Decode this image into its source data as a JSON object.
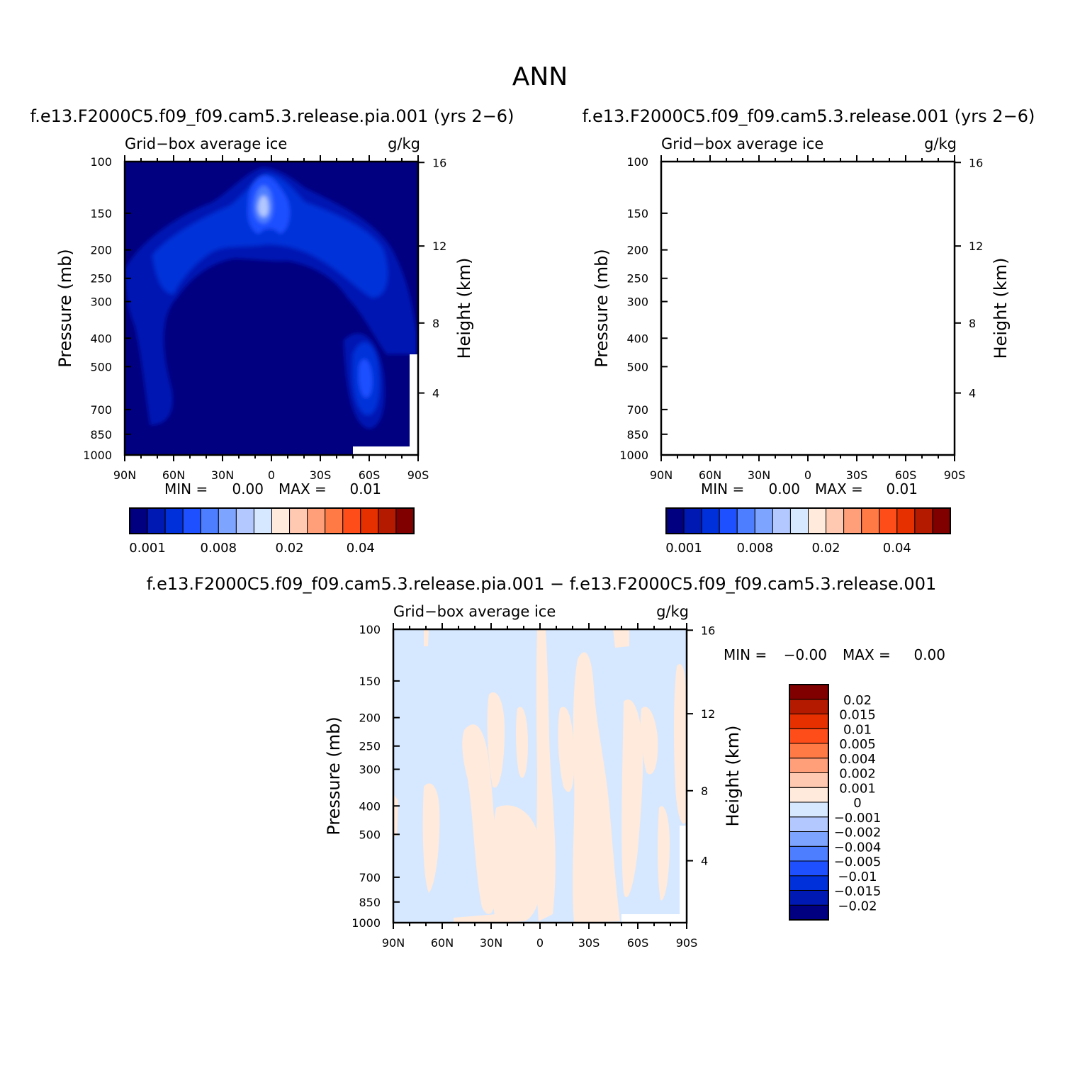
{
  "figure": {
    "season": "ANN"
  },
  "chart_data": [
    {
      "type": "heatmap",
      "panel": "test",
      "case_title": "f.e13.F2000C5.f09_f09.cam5.3.release.pia.001 (yrs 2−6)",
      "variable_label": "Grid−box average ice",
      "units": "g/kg",
      "ylabel": "Pressure (mb)",
      "ylabel2": "Height (km)",
      "x_tick_labels": [
        "90N",
        "60N",
        "30N",
        "0",
        "30S",
        "60S",
        "90S"
      ],
      "y_tick_labels": [
        "100",
        "150",
        "200",
        "250",
        "300",
        "400",
        "500",
        "700",
        "850",
        "1000"
      ],
      "y2_tick_labels": [
        "16",
        "12",
        "8",
        "4"
      ],
      "xlim": [
        90,
        -90
      ],
      "ylim": [
        1000,
        100
      ],
      "y_scale": "log",
      "min_label": "MIN =",
      "min_value": "0.00",
      "max_label": "MAX =",
      "max_value": "0.01",
      "colorbar_orientation": "horizontal",
      "colorbar_colors": [
        "#000080",
        "#0019b3",
        "#0030d9",
        "#1f50ff",
        "#4d7eff",
        "#7da4ff",
        "#b2c8ff",
        "#d6e8ff",
        "#ffeadb",
        "#ffc8b0",
        "#ff9f7a",
        "#ff7a45",
        "#ff4d1a",
        "#e63000",
        "#b31a00",
        "#800000"
      ],
      "colorbar_labels": [
        "0.001",
        "0.008",
        "0.02",
        "0.04"
      ]
    },
    {
      "type": "heatmap",
      "panel": "control",
      "case_title": "f.e13.F2000C5.f09_f09.cam5.3.release.001 (yrs 2−6)",
      "variable_label": "Grid−box average ice",
      "units": "g/kg",
      "ylabel": "Pressure (mb)",
      "ylabel2": "Height (km)",
      "x_tick_labels": [
        "90N",
        "60N",
        "30N",
        "0",
        "30S",
        "60S",
        "90S"
      ],
      "y_tick_labels": [
        "100",
        "150",
        "200",
        "250",
        "300",
        "400",
        "500",
        "700",
        "850",
        "1000"
      ],
      "y2_tick_labels": [
        "16",
        "12",
        "8",
        "4"
      ],
      "xlim": [
        90,
        -90
      ],
      "ylim": [
        1000,
        100
      ],
      "y_scale": "log",
      "min_label": "MIN =",
      "min_value": "0.00",
      "max_label": "MAX =",
      "max_value": "0.01",
      "colorbar_orientation": "horizontal",
      "colorbar_colors": [
        "#000080",
        "#0019b3",
        "#0030d9",
        "#1f50ff",
        "#4d7eff",
        "#7da4ff",
        "#b2c8ff",
        "#d6e8ff",
        "#ffeadb",
        "#ffc8b0",
        "#ff9f7a",
        "#ff7a45",
        "#ff4d1a",
        "#e63000",
        "#b31a00",
        "#800000"
      ],
      "colorbar_labels": [
        "0.001",
        "0.008",
        "0.02",
        "0.04"
      ]
    },
    {
      "type": "heatmap",
      "panel": "difference",
      "case_title": "f.e13.F2000C5.f09_f09.cam5.3.release.pia.001 − f.e13.F2000C5.f09_f09.cam5.3.release.001",
      "variable_label": "Grid−box average ice",
      "units": "g/kg",
      "ylabel": "Pressure (mb)",
      "ylabel2": "Height (km)",
      "x_tick_labels": [
        "90N",
        "60N",
        "30N",
        "0",
        "30S",
        "60S",
        "90S"
      ],
      "y_tick_labels": [
        "100",
        "150",
        "200",
        "250",
        "300",
        "400",
        "500",
        "700",
        "850",
        "1000"
      ],
      "y2_tick_labels": [
        "16",
        "12",
        "8",
        "4"
      ],
      "xlim": [
        90,
        -90
      ],
      "ylim": [
        1000,
        100
      ],
      "y_scale": "log",
      "min_label": "MIN =",
      "min_value": "−0.00",
      "max_label": "MAX =",
      "max_value": "0.00",
      "colorbar_orientation": "vertical",
      "colorbar_colors": [
        "#000080",
        "#0019b3",
        "#0030d9",
        "#1f50ff",
        "#4d7eff",
        "#7da4ff",
        "#b2c8ff",
        "#d6e8ff",
        "#ffeadb",
        "#ffc8b0",
        "#ff9f7a",
        "#ff7a45",
        "#ff4d1a",
        "#e63000",
        "#b31a00",
        "#800000"
      ],
      "colorbar_labels": [
        "−0.02",
        "−0.015",
        "−0.01",
        "−0.005",
        "−0.004",
        "−0.002",
        "−0.001",
        "0",
        "0.001",
        "0.002",
        "0.004",
        "0.005",
        "0.01",
        "0.015",
        "0.02"
      ]
    }
  ]
}
